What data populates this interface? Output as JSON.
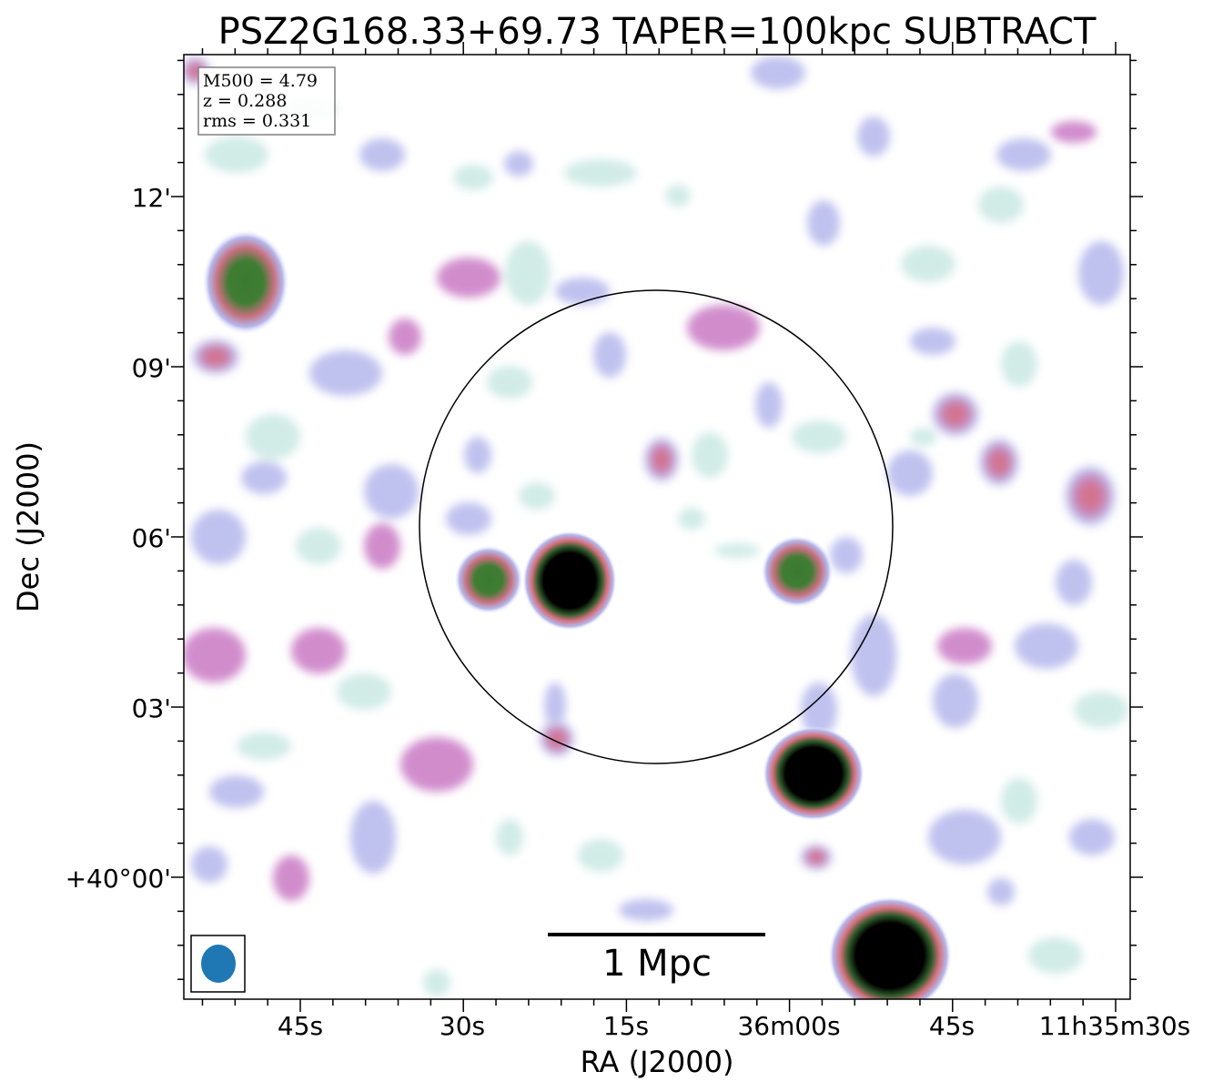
{
  "title": "PSZ2G168.33+69.73 TAPER=100kpc SUBTRACT",
  "info_box": {
    "m500": "M500 = 4.79",
    "z": "z = 0.288",
    "rms": "rms = 0.331"
  },
  "x_axis": {
    "label": "RA (J2000)",
    "ticks": [
      "45s",
      "30s",
      "15s",
      "36m00s",
      "45s",
      "11h35m30s"
    ]
  },
  "y_axis": {
    "label": "Dec (J2000)",
    "ticks": [
      "12'",
      "09'",
      "06'",
      "03'",
      "+40°00'"
    ]
  },
  "scale_bar": {
    "label": "1 Mpc"
  },
  "beam_color": "#1f77b4",
  "colormap": [
    "#ffffff",
    "#c9e8e3",
    "#b5b7ec",
    "#c979c4",
    "#d46f7a",
    "#3f7d33",
    "#000000"
  ]
}
